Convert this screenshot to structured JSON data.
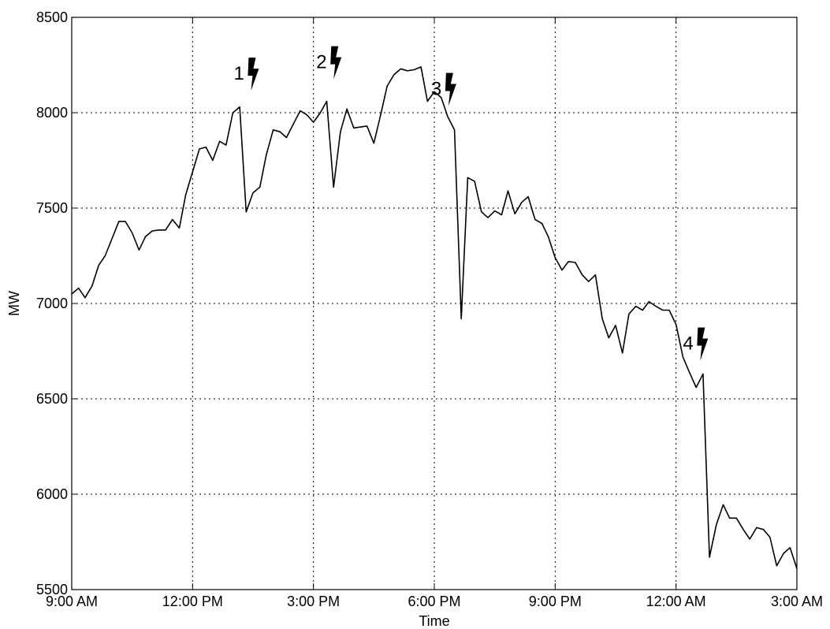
{
  "chart_data": {
    "type": "line",
    "title": "",
    "xlabel": "Time",
    "ylabel": "MW",
    "xlim": [
      0,
      18
    ],
    "ylim": [
      5500,
      8500
    ],
    "x_ticks": [
      {
        "value": 0,
        "label": "9:00 AM"
      },
      {
        "value": 3,
        "label": "12:00 PM"
      },
      {
        "value": 6,
        "label": "3:00 PM"
      },
      {
        "value": 9,
        "label": "6:00 PM"
      },
      {
        "value": 12,
        "label": "9:00 PM"
      },
      {
        "value": 15,
        "label": "12:00 AM"
      },
      {
        "value": 18,
        "label": "3:00 AM"
      }
    ],
    "y_ticks": [
      5500,
      6000,
      6500,
      7000,
      7500,
      8000,
      8500
    ],
    "grid": true,
    "series": [
      {
        "x": [
          0,
          0.17,
          0.33,
          0.5,
          0.67,
          0.83,
          1.0,
          1.17,
          1.33,
          1.5,
          1.67,
          1.83,
          2.0,
          2.17,
          2.33,
          2.5,
          2.67,
          2.83,
          3.0,
          3.17,
          3.33,
          3.5,
          3.67,
          3.83,
          4.0,
          4.17,
          4.33,
          4.5,
          4.67,
          4.83,
          5.0,
          5.17,
          5.33,
          5.5,
          5.67,
          5.83,
          6.0,
          6.17,
          6.33,
          6.5,
          6.67,
          6.83,
          7.0,
          7.17,
          7.33,
          7.5,
          7.67,
          7.83,
          8.0,
          8.17,
          8.33,
          8.5,
          8.67,
          8.83,
          9.0,
          9.17,
          9.33,
          9.5,
          9.67,
          9.83,
          10.0,
          10.17,
          10.33,
          10.5,
          10.67,
          10.83,
          11.0,
          11.17,
          11.33,
          11.5,
          11.67,
          11.83,
          12.0,
          12.17,
          12.33,
          12.5,
          12.67,
          12.83,
          13.0,
          13.17,
          13.33,
          13.5,
          13.67,
          13.83,
          14.0,
          14.17,
          14.33,
          14.5,
          14.67,
          14.83,
          15.0,
          15.17,
          15.33,
          15.5,
          15.67,
          15.83,
          16.0,
          16.17,
          16.33,
          16.5,
          16.67,
          16.83,
          17.0,
          17.17,
          17.33,
          17.5,
          17.67,
          17.83,
          18.0
        ],
        "values": [
          7050,
          7080,
          7030,
          7090,
          7200,
          7250,
          7340,
          7430,
          7430,
          7370,
          7280,
          7350,
          7380,
          7385,
          7385,
          7440,
          7395,
          7570,
          7690,
          7810,
          7820,
          7750,
          7850,
          7830,
          8000,
          8030,
          7480,
          7580,
          7610,
          7780,
          7910,
          7900,
          7870,
          7940,
          8010,
          7990,
          7950,
          8000,
          8060,
          7610,
          7900,
          8020,
          7920,
          7925,
          7930,
          7840,
          7990,
          8140,
          8200,
          8230,
          8220,
          8225,
          8240,
          8060,
          8110,
          8080,
          7980,
          7910,
          6920,
          7660,
          7640,
          7480,
          7450,
          7485,
          7465,
          7590,
          7470,
          7530,
          7560,
          7440,
          7420,
          7350,
          7240,
          7175,
          7220,
          7215,
          7150,
          7115,
          7150,
          6920,
          6820,
          6885,
          6740,
          6945,
          6985,
          6965,
          7010,
          6985,
          6965,
          6965,
          6890,
          6720,
          6640,
          6560,
          6630,
          5670,
          5840,
          5945,
          5875,
          5875,
          5815,
          5765,
          5825,
          5815,
          5775,
          5625,
          5690,
          5720,
          5610
        ]
      }
    ],
    "annotations": [
      {
        "label": "1",
        "x": 4.45,
        "y": 8140
      },
      {
        "label": "2",
        "x": 6.5,
        "y": 8200
      },
      {
        "label": "3",
        "x": 9.35,
        "y": 8060
      },
      {
        "label": "4",
        "x": 15.6,
        "y": 6725
      }
    ]
  }
}
